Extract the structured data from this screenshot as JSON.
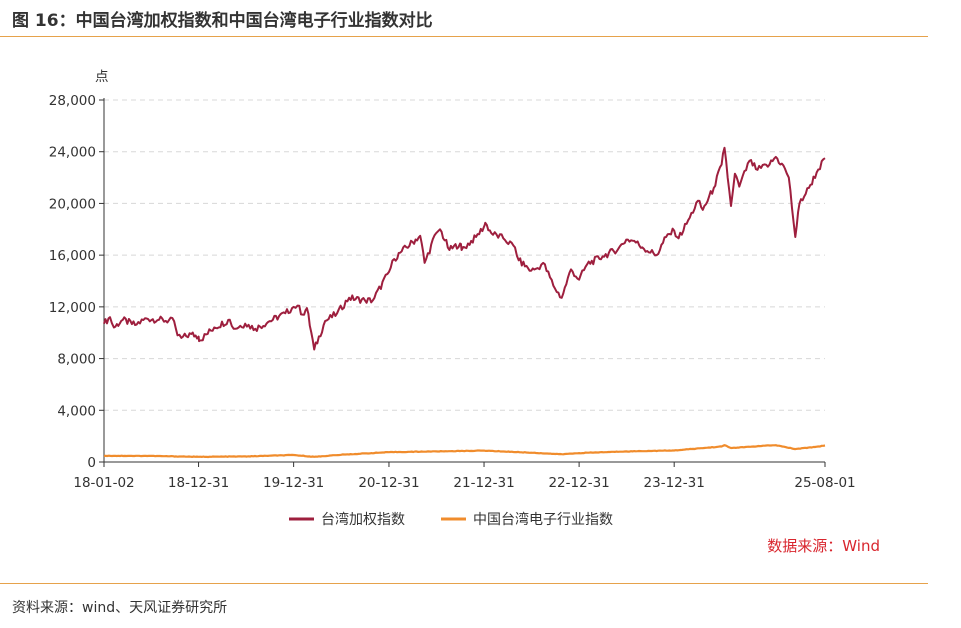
{
  "figure": {
    "title": "图 16：中国台湾加权指数和中国台湾电子行业指数对比",
    "source_note": "资料来源：wind、天风证券研究所"
  },
  "chart_data": {
    "type": "line",
    "ylabel": "点",
    "ylim": [
      0,
      28000
    ],
    "yticks": [
      0,
      4000,
      8000,
      12000,
      16000,
      20000,
      24000,
      28000
    ],
    "ytick_labels": [
      "0",
      "4,000",
      "8,000",
      "12,000",
      "16,000",
      "20,000",
      "24,000",
      "28,000"
    ],
    "xlim": [
      "2018-01-02",
      "2025-08-01"
    ],
    "xticks": [
      "2018-01-02",
      "2018-12-31",
      "2019-12-31",
      "2020-12-31",
      "2021-12-31",
      "2022-12-31",
      "2023-12-31",
      "2025-08-01"
    ],
    "xtick_labels": [
      "18-01-02",
      "18-12-31",
      "19-12-31",
      "20-12-31",
      "21-12-31",
      "22-12-31",
      "23-12-31",
      "25-08-01"
    ],
    "grid": "horizontal-dashed",
    "legend_position": "bottom-center",
    "annotation": "数据来源：Wind",
    "colors": {
      "taiex": "#9e1f3e",
      "electronics": "#f08c2c",
      "axis": "#333333",
      "grid": "#d8d8d8"
    },
    "series": [
      {
        "name": "台湾加权指数",
        "color": "#9e1f3e",
        "points": [
          [
            "2018-01-02",
            10700
          ],
          [
            "2018-01-25",
            11200
          ],
          [
            "2018-02-09",
            10400
          ],
          [
            "2018-03-15",
            11000
          ],
          [
            "2018-05-01",
            10600
          ],
          [
            "2018-06-15",
            11100
          ],
          [
            "2018-08-01",
            11000
          ],
          [
            "2018-09-28",
            10900
          ],
          [
            "2018-10-11",
            9800
          ],
          [
            "2018-10-26",
            9600
          ],
          [
            "2018-12-03",
            9900
          ],
          [
            "2018-12-31",
            9700
          ],
          [
            "2019-01-04",
            9400
          ],
          [
            "2019-03-01",
            10400
          ],
          [
            "2019-04-30",
            11000
          ],
          [
            "2019-05-15",
            10300
          ],
          [
            "2019-06-28",
            10700
          ],
          [
            "2019-08-06",
            10300
          ],
          [
            "2019-09-30",
            10900
          ],
          [
            "2019-11-29",
            11500
          ],
          [
            "2019-12-31",
            12000
          ],
          [
            "2020-01-15",
            12100
          ],
          [
            "2020-02-04",
            11400
          ],
          [
            "2020-02-20",
            11900
          ],
          [
            "2020-03-19",
            8700
          ],
          [
            "2020-04-30",
            10900
          ],
          [
            "2020-06-15",
            11500
          ],
          [
            "2020-07-31",
            12700
          ],
          [
            "2020-09-30",
            12500
          ],
          [
            "2020-10-30",
            12500
          ],
          [
            "2020-12-31",
            14700
          ],
          [
            "2021-01-20",
            15700
          ],
          [
            "2021-02-18",
            16300
          ],
          [
            "2021-04-30",
            17500
          ],
          [
            "2021-05-17",
            15400
          ],
          [
            "2021-06-30",
            17700
          ],
          [
            "2021-07-15",
            18000
          ],
          [
            "2021-08-20",
            16400
          ],
          [
            "2021-09-30",
            16900
          ],
          [
            "2021-10-06",
            16400
          ],
          [
            "2021-11-30",
            17400
          ],
          [
            "2021-12-31",
            18200
          ],
          [
            "2022-01-05",
            18500
          ],
          [
            "2022-01-28",
            17700
          ],
          [
            "2022-03-15",
            17300
          ],
          [
            "2022-04-29",
            16600
          ],
          [
            "2022-05-13",
            15600
          ],
          [
            "2022-06-30",
            14800
          ],
          [
            "2022-07-25",
            15000
          ],
          [
            "2022-08-15",
            15400
          ],
          [
            "2022-09-30",
            13400
          ],
          [
            "2022-10-25",
            12700
          ],
          [
            "2022-11-30",
            14900
          ],
          [
            "2022-12-31",
            14100
          ],
          [
            "2023-01-31",
            15300
          ],
          [
            "2023-03-31",
            15900
          ],
          [
            "2023-05-31",
            16500
          ],
          [
            "2023-06-30",
            17200
          ],
          [
            "2023-07-31",
            17100
          ],
          [
            "2023-08-31",
            16600
          ],
          [
            "2023-10-25",
            16000
          ],
          [
            "2023-11-30",
            17400
          ],
          [
            "2023-12-31",
            17900
          ],
          [
            "2024-01-17",
            17300
          ],
          [
            "2024-02-29",
            18900
          ],
          [
            "2024-03-31",
            20200
          ],
          [
            "2024-04-19",
            19500
          ],
          [
            "2024-05-31",
            21200
          ],
          [
            "2024-06-30",
            23000
          ],
          [
            "2024-07-11",
            24300
          ],
          [
            "2024-08-05",
            19800
          ],
          [
            "2024-08-20",
            22300
          ],
          [
            "2024-09-06",
            21300
          ],
          [
            "2024-10-15",
            23300
          ],
          [
            "2024-11-15",
            22600
          ],
          [
            "2024-12-31",
            23000
          ],
          [
            "2025-01-24",
            23600
          ],
          [
            "2025-02-28",
            22700
          ],
          [
            "2025-03-15",
            22000
          ],
          [
            "2025-04-09",
            17400
          ],
          [
            "2025-04-25",
            20000
          ],
          [
            "2025-05-31",
            21200
          ],
          [
            "2025-06-30",
            22400
          ],
          [
            "2025-08-01",
            23500
          ]
        ]
      },
      {
        "name": "中国台湾电子行业指数",
        "color": "#f08c2c",
        "points": [
          [
            "2018-01-02",
            480
          ],
          [
            "2018-06-29",
            470
          ],
          [
            "2018-12-31",
            400
          ],
          [
            "2019-06-28",
            430
          ],
          [
            "2019-12-31",
            540
          ],
          [
            "2020-03-19",
            400
          ],
          [
            "2020-06-30",
            560
          ],
          [
            "2020-12-31",
            760
          ],
          [
            "2021-06-30",
            820
          ],
          [
            "2021-12-31",
            880
          ],
          [
            "2022-06-30",
            720
          ],
          [
            "2022-10-25",
            600
          ],
          [
            "2022-12-31",
            690
          ],
          [
            "2023-06-30",
            820
          ],
          [
            "2023-12-31",
            890
          ],
          [
            "2024-06-30",
            1200
          ],
          [
            "2024-07-11",
            1300
          ],
          [
            "2024-08-05",
            1080
          ],
          [
            "2024-12-31",
            1280
          ],
          [
            "2025-01-24",
            1300
          ],
          [
            "2025-04-09",
            1000
          ],
          [
            "2025-06-30",
            1180
          ],
          [
            "2025-08-01",
            1280
          ]
        ]
      }
    ]
  }
}
